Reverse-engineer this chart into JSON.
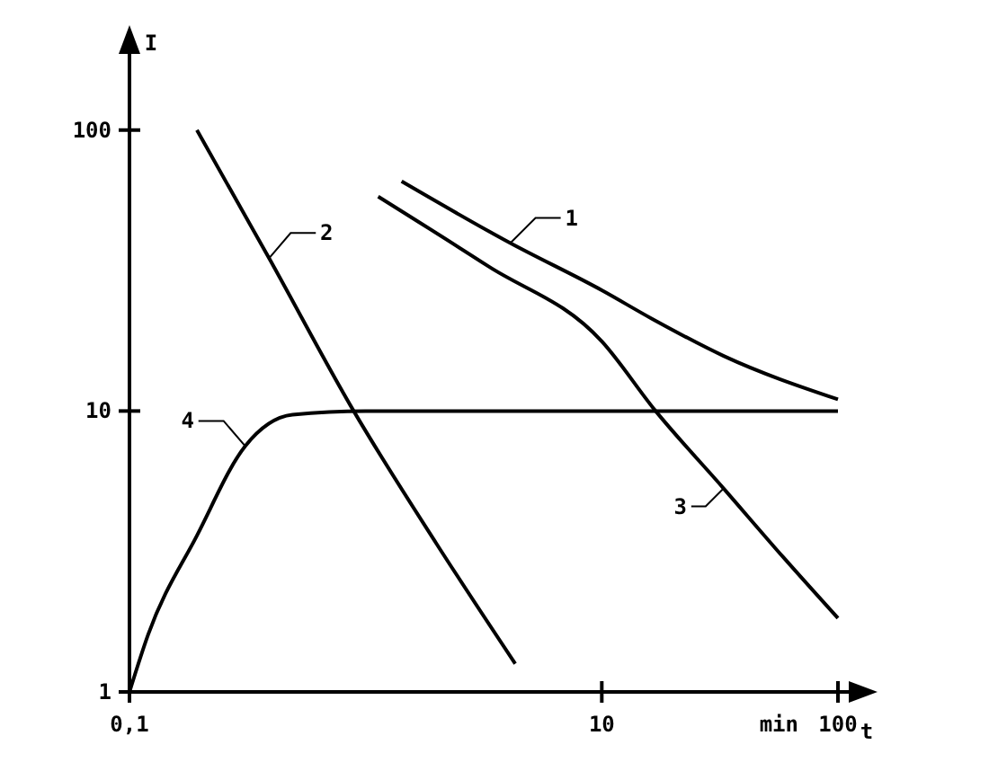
{
  "chart_data": {
    "type": "line",
    "xlabel": "t",
    "ylabel": "I",
    "log": "xy",
    "xlim": [
      0.1,
      100
    ],
    "ylim": [
      1,
      120
    ],
    "xticks": [
      {
        "value": 0.1,
        "label": "0,1"
      },
      10,
      100
    ],
    "yticks": [
      1,
      10,
      100
    ],
    "line_style": "solid",
    "legend": "center",
    "annotations": [
      "min"
    ],
    "series": [
      {
        "name": "1",
        "color": "#000000",
        "x": [
          1.42,
          4.1,
          10,
          16.3,
          32.8,
          100
        ],
        "values": [
          65.7,
          39.6,
          26.9,
          21.3,
          15.7,
          11
        ]
      },
      {
        "name": "2",
        "color": "#000000",
        "x": [
          0.193,
          0.39,
          0.89,
          2.0,
          4.3
        ],
        "values": [
          100,
          35,
          10,
          3.36,
          1.26
        ]
      },
      {
        "name": "3",
        "color": "#000000",
        "x": [
          1.13,
          3.3,
          10,
          16.9,
          32.8,
          58.6,
          100
        ],
        "values": [
          58,
          32.8,
          17.7,
          10,
          5.3,
          3.02,
          1.83
        ]
      },
      {
        "name": "4",
        "color": "#000000",
        "x": [
          0.1,
          0.12,
          0.193,
          0.309,
          0.49,
          1,
          100
        ],
        "values": [
          1,
          1.6,
          3.6,
          7.5,
          9.7,
          10,
          10
        ]
      }
    ]
  }
}
